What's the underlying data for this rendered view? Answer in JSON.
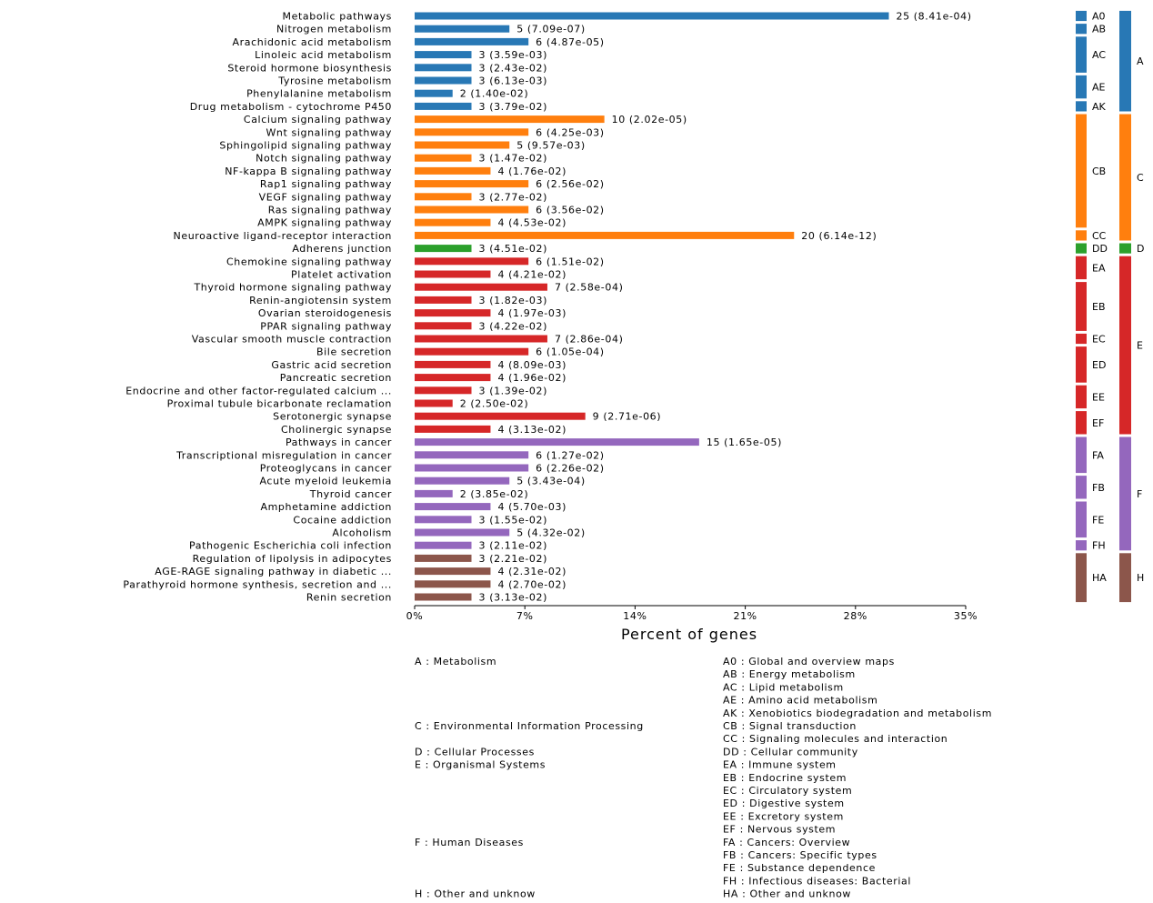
{
  "chart_data": {
    "type": "bar",
    "orientation": "horizontal",
    "xlabel": "Percent of genes",
    "xlim": [
      0,
      35
    ],
    "xticks": [
      "0%",
      "7%",
      "14%",
      "21%",
      "28%",
      "35%"
    ],
    "grid": false,
    "group_colors": {
      "A": "#2878b5",
      "C": "#ff7f0e",
      "D": "#2ca02c",
      "E": "#d62728",
      "F": "#9467bd",
      "H": "#8c564b"
    },
    "categories": [
      {
        "label": "Metabolic pathways",
        "value": 30.12,
        "count": 25,
        "pvalue": "8.41e-04",
        "group": "A",
        "sub": "A0"
      },
      {
        "label": "Nitrogen metabolism",
        "value": 6.02,
        "count": 5,
        "pvalue": "7.09e-07",
        "group": "A",
        "sub": "AB"
      },
      {
        "label": "Arachidonic acid metabolism",
        "value": 7.23,
        "count": 6,
        "pvalue": "4.87e-05",
        "group": "A",
        "sub": "AC"
      },
      {
        "label": "Linoleic acid metabolism",
        "value": 3.61,
        "count": 3,
        "pvalue": "3.59e-03",
        "group": "A",
        "sub": "AC"
      },
      {
        "label": "Steroid hormone biosynthesis",
        "value": 3.61,
        "count": 3,
        "pvalue": "2.43e-02",
        "group": "A",
        "sub": "AC"
      },
      {
        "label": "Tyrosine metabolism",
        "value": 3.61,
        "count": 3,
        "pvalue": "6.13e-03",
        "group": "A",
        "sub": "AE"
      },
      {
        "label": "Phenylalanine metabolism",
        "value": 2.41,
        "count": 2,
        "pvalue": "1.40e-02",
        "group": "A",
        "sub": "AE"
      },
      {
        "label": "Drug metabolism - cytochrome P450",
        "value": 3.61,
        "count": 3,
        "pvalue": "3.79e-02",
        "group": "A",
        "sub": "AK"
      },
      {
        "label": "Calcium signaling pathway",
        "value": 12.05,
        "count": 10,
        "pvalue": "2.02e-05",
        "group": "C",
        "sub": "CB"
      },
      {
        "label": "Wnt signaling pathway",
        "value": 7.23,
        "count": 6,
        "pvalue": "4.25e-03",
        "group": "C",
        "sub": "CB"
      },
      {
        "label": "Sphingolipid signaling pathway",
        "value": 6.02,
        "count": 5,
        "pvalue": "9.57e-03",
        "group": "C",
        "sub": "CB"
      },
      {
        "label": "Notch signaling pathway",
        "value": 3.61,
        "count": 3,
        "pvalue": "1.47e-02",
        "group": "C",
        "sub": "CB"
      },
      {
        "label": "NF-kappa B signaling pathway",
        "value": 4.82,
        "count": 4,
        "pvalue": "1.76e-02",
        "group": "C",
        "sub": "CB"
      },
      {
        "label": "Rap1 signaling pathway",
        "value": 7.23,
        "count": 6,
        "pvalue": "2.56e-02",
        "group": "C",
        "sub": "CB"
      },
      {
        "label": "VEGF signaling pathway",
        "value": 3.61,
        "count": 3,
        "pvalue": "2.77e-02",
        "group": "C",
        "sub": "CB"
      },
      {
        "label": "Ras signaling pathway",
        "value": 7.23,
        "count": 6,
        "pvalue": "3.56e-02",
        "group": "C",
        "sub": "CB"
      },
      {
        "label": "AMPK signaling pathway",
        "value": 4.82,
        "count": 4,
        "pvalue": "4.53e-02",
        "group": "C",
        "sub": "CB"
      },
      {
        "label": "Neuroactive ligand-receptor interaction",
        "value": 24.1,
        "count": 20,
        "pvalue": "6.14e-12",
        "group": "C",
        "sub": "CC"
      },
      {
        "label": "Adherens junction",
        "value": 3.61,
        "count": 3,
        "pvalue": "4.51e-02",
        "group": "D",
        "sub": "DD"
      },
      {
        "label": "Chemokine signaling pathway",
        "value": 7.23,
        "count": 6,
        "pvalue": "1.51e-02",
        "group": "E",
        "sub": "EA"
      },
      {
        "label": "Platelet activation",
        "value": 4.82,
        "count": 4,
        "pvalue": "4.21e-02",
        "group": "E",
        "sub": "EA"
      },
      {
        "label": "Thyroid hormone signaling pathway",
        "value": 8.43,
        "count": 7,
        "pvalue": "2.58e-04",
        "group": "E",
        "sub": "EB"
      },
      {
        "label": "Renin-angiotensin system",
        "value": 3.61,
        "count": 3,
        "pvalue": "1.82e-03",
        "group": "E",
        "sub": "EB"
      },
      {
        "label": "Ovarian steroidogenesis",
        "value": 4.82,
        "count": 4,
        "pvalue": "1.97e-03",
        "group": "E",
        "sub": "EB"
      },
      {
        "label": "PPAR signaling pathway",
        "value": 3.61,
        "count": 3,
        "pvalue": "4.22e-02",
        "group": "E",
        "sub": "EB"
      },
      {
        "label": "Vascular smooth muscle contraction",
        "value": 8.43,
        "count": 7,
        "pvalue": "2.86e-04",
        "group": "E",
        "sub": "EC"
      },
      {
        "label": "Bile secretion",
        "value": 7.23,
        "count": 6,
        "pvalue": "1.05e-04",
        "group": "E",
        "sub": "ED"
      },
      {
        "label": "Gastric acid secretion",
        "value": 4.82,
        "count": 4,
        "pvalue": "8.09e-03",
        "group": "E",
        "sub": "ED"
      },
      {
        "label": "Pancreatic secretion",
        "value": 4.82,
        "count": 4,
        "pvalue": "1.96e-02",
        "group": "E",
        "sub": "ED"
      },
      {
        "label": "Endocrine and other factor-regulated calcium ...",
        "value": 3.61,
        "count": 3,
        "pvalue": "1.39e-02",
        "group": "E",
        "sub": "EE"
      },
      {
        "label": "Proximal tubule bicarbonate reclamation",
        "value": 2.41,
        "count": 2,
        "pvalue": "2.50e-02",
        "group": "E",
        "sub": "EE"
      },
      {
        "label": "Serotonergic synapse",
        "value": 10.84,
        "count": 9,
        "pvalue": "2.71e-06",
        "group": "E",
        "sub": "EF"
      },
      {
        "label": "Cholinergic synapse",
        "value": 4.82,
        "count": 4,
        "pvalue": "3.13e-02",
        "group": "E",
        "sub": "EF"
      },
      {
        "label": "Pathways in cancer",
        "value": 18.07,
        "count": 15,
        "pvalue": "1.65e-05",
        "group": "F",
        "sub": "FA"
      },
      {
        "label": "Transcriptional misregulation in cancer",
        "value": 7.23,
        "count": 6,
        "pvalue": "1.27e-02",
        "group": "F",
        "sub": "FA"
      },
      {
        "label": "Proteoglycans in cancer",
        "value": 7.23,
        "count": 6,
        "pvalue": "2.26e-02",
        "group": "F",
        "sub": "FA"
      },
      {
        "label": "Acute myeloid leukemia",
        "value": 6.02,
        "count": 5,
        "pvalue": "3.43e-04",
        "group": "F",
        "sub": "FB"
      },
      {
        "label": "Thyroid cancer",
        "value": 2.41,
        "count": 2,
        "pvalue": "3.85e-02",
        "group": "F",
        "sub": "FB"
      },
      {
        "label": "Amphetamine addiction",
        "value": 4.82,
        "count": 4,
        "pvalue": "5.70e-03",
        "group": "F",
        "sub": "FE"
      },
      {
        "label": "Cocaine addiction",
        "value": 3.61,
        "count": 3,
        "pvalue": "1.55e-02",
        "group": "F",
        "sub": "FE"
      },
      {
        "label": "Alcoholism",
        "value": 6.02,
        "count": 5,
        "pvalue": "4.32e-02",
        "group": "F",
        "sub": "FE"
      },
      {
        "label": "Pathogenic Escherichia coli infection",
        "value": 3.61,
        "count": 3,
        "pvalue": "2.11e-02",
        "group": "F",
        "sub": "FH"
      },
      {
        "label": "Regulation of lipolysis in adipocytes",
        "value": 3.61,
        "count": 3,
        "pvalue": "2.21e-02",
        "group": "H",
        "sub": "HA"
      },
      {
        "label": "AGE-RAGE signaling pathway in diabetic ...",
        "value": 4.82,
        "count": 4,
        "pvalue": "2.31e-02",
        "group": "H",
        "sub": "HA"
      },
      {
        "label": "Parathyroid hormone synthesis, secretion and ...",
        "value": 4.82,
        "count": 4,
        "pvalue": "2.70e-02",
        "group": "H",
        "sub": "HA"
      },
      {
        "label": "Renin secretion",
        "value": 3.61,
        "count": 3,
        "pvalue": "3.13e-02",
        "group": "H",
        "sub": "HA"
      }
    ]
  },
  "legend": {
    "groups": [
      {
        "code": "A",
        "text": "A : Metabolism"
      },
      {
        "code": "C",
        "text": "C : Environmental Information Processing"
      },
      {
        "code": "D",
        "text": "D : Cellular Processes"
      },
      {
        "code": "E",
        "text": "E : Organismal Systems"
      },
      {
        "code": "F",
        "text": "F : Human Diseases"
      },
      {
        "code": "H",
        "text": "H : Other and unknow"
      }
    ],
    "subgroups": [
      {
        "code": "A0",
        "text": "A0 : Global and overview maps"
      },
      {
        "code": "AB",
        "text": "AB : Energy metabolism"
      },
      {
        "code": "AC",
        "text": "AC : Lipid metabolism"
      },
      {
        "code": "AE",
        "text": "AE : Amino acid metabolism"
      },
      {
        "code": "AK",
        "text": "AK : Xenobiotics biodegradation and metabolism"
      },
      {
        "code": "CB",
        "text": "CB : Signal transduction"
      },
      {
        "code": "CC",
        "text": "CC : Signaling molecules and interaction"
      },
      {
        "code": "DD",
        "text": "DD : Cellular community"
      },
      {
        "code": "EA",
        "text": "EA : Immune system"
      },
      {
        "code": "EB",
        "text": "EB : Endocrine system"
      },
      {
        "code": "EC",
        "text": "EC : Circulatory system"
      },
      {
        "code": "ED",
        "text": "ED : Digestive system"
      },
      {
        "code": "EE",
        "text": "EE : Excretory system"
      },
      {
        "code": "EF",
        "text": "EF : Nervous system"
      },
      {
        "code": "FA",
        "text": "FA : Cancers: Overview"
      },
      {
        "code": "FB",
        "text": "FB : Cancers: Specific types"
      },
      {
        "code": "FE",
        "text": "FE : Substance dependence"
      },
      {
        "code": "FH",
        "text": "FH : Infectious diseases: Bacterial"
      },
      {
        "code": "HA",
        "text": "HA : Other and unknow"
      }
    ]
  }
}
